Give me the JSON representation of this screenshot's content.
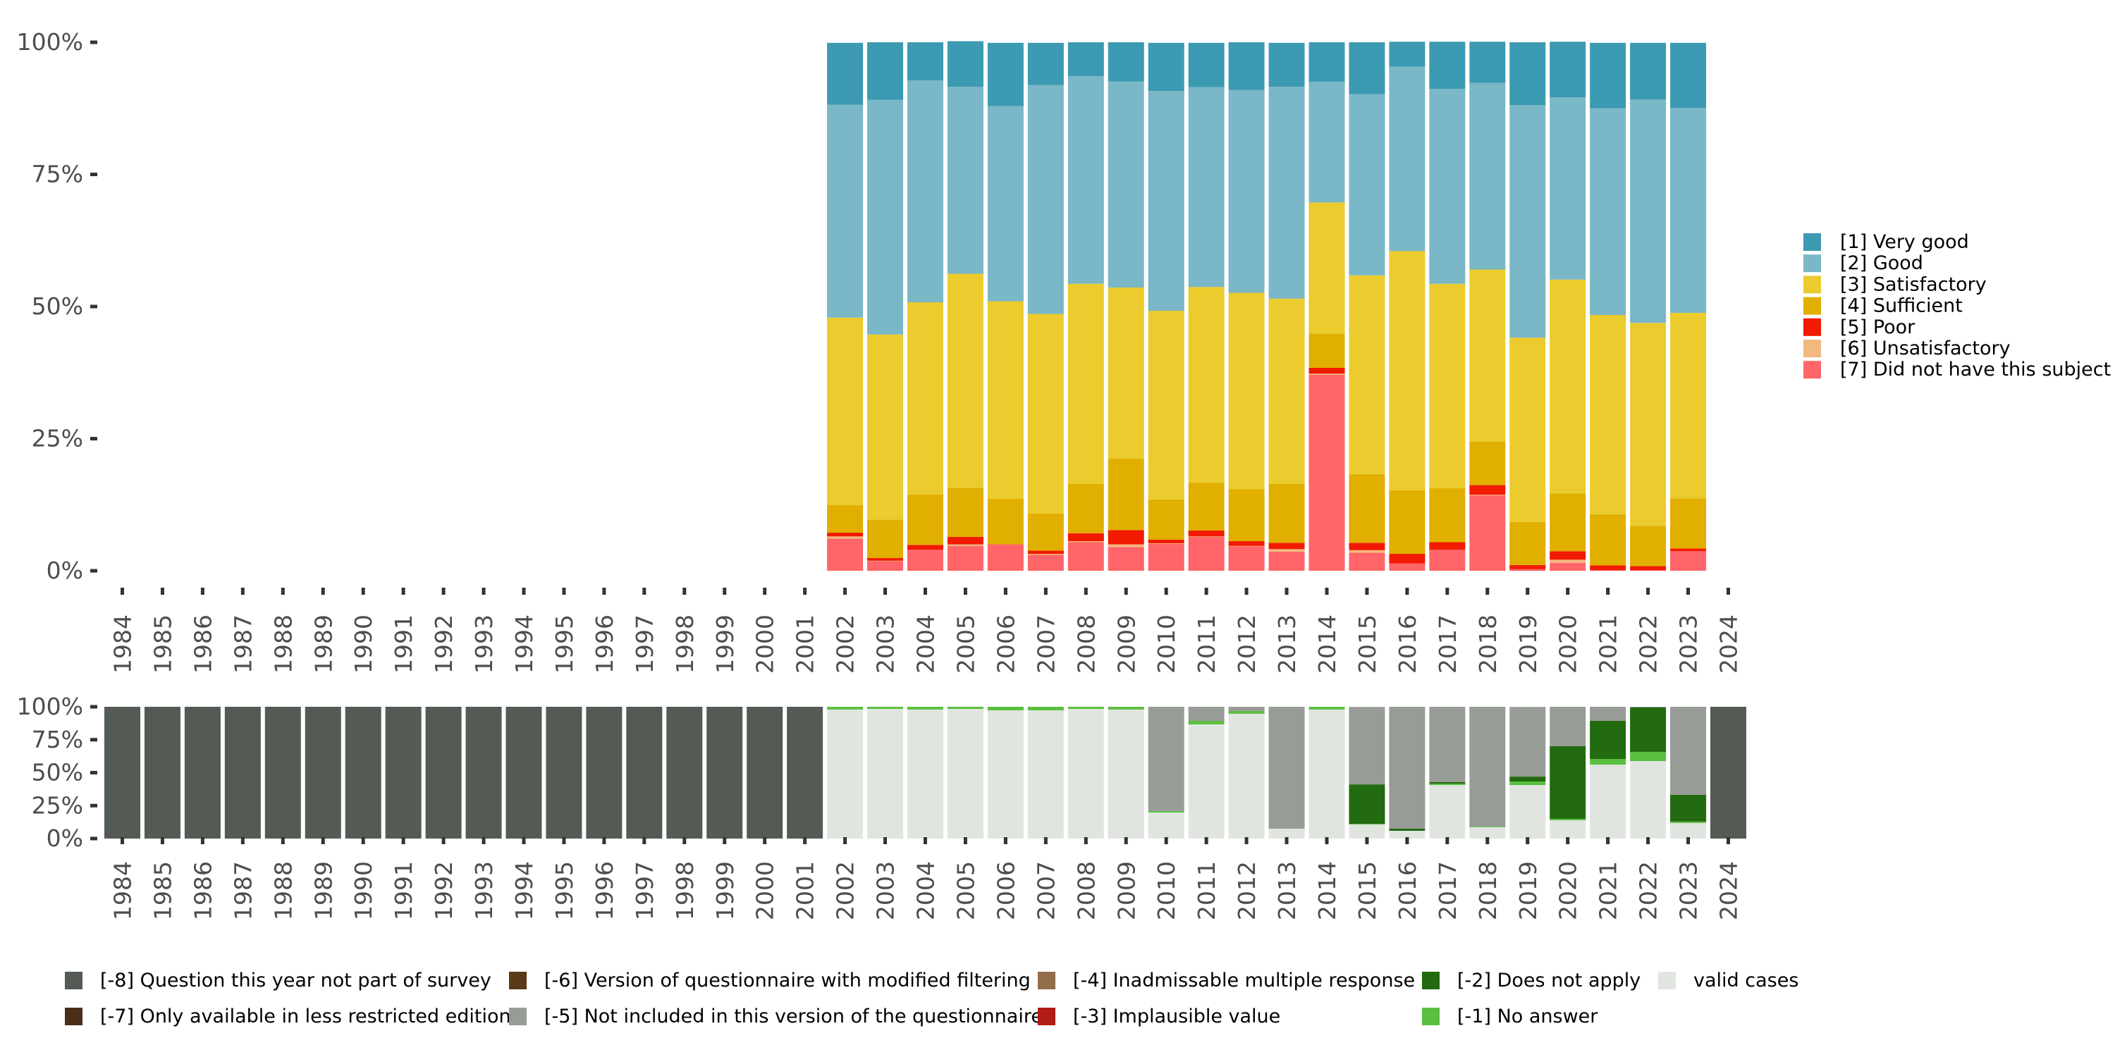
{
  "chart_data": [
    {
      "type": "bar",
      "stacked": true,
      "normalized": true,
      "title": "",
      "xlabel": "",
      "ylabel": "",
      "ylim": [
        0,
        100
      ],
      "yticks": [
        "0%",
        "25%",
        "50%",
        "75%",
        "100%"
      ],
      "categories": [
        "1984",
        "1985",
        "1986",
        "1987",
        "1988",
        "1989",
        "1990",
        "1991",
        "1992",
        "1993",
        "1994",
        "1995",
        "1996",
        "1997",
        "1998",
        "1999",
        "2000",
        "2001",
        "2002",
        "2003",
        "2004",
        "2005",
        "2006",
        "2007",
        "2008",
        "2009",
        "2010",
        "2011",
        "2012",
        "2013",
        "2014",
        "2015",
        "2016",
        "2017",
        "2018",
        "2019",
        "2020",
        "2021",
        "2022",
        "2023",
        "2024"
      ],
      "legend_position": "right",
      "series": [
        {
          "name": "[7] Did not have this subject",
          "color": "#ff6569",
          "values": [
            null,
            null,
            null,
            null,
            null,
            null,
            null,
            null,
            null,
            null,
            null,
            null,
            null,
            null,
            null,
            null,
            null,
            null,
            6.1,
            1.8,
            4.0,
            4.7,
            5.0,
            3.0,
            5.4,
            4.5,
            5.1,
            6.4,
            4.6,
            3.6,
            37.1,
            3.4,
            1.4,
            4.0,
            14.3,
            0.3,
            1.5,
            0.1,
            0.1,
            3.7,
            null
          ]
        },
        {
          "name": "[6] Unsatisfactory",
          "color": "#f2b87f",
          "values": [
            null,
            null,
            null,
            null,
            null,
            null,
            null,
            null,
            null,
            null,
            null,
            null,
            null,
            null,
            null,
            null,
            null,
            null,
            0.4,
            0.1,
            0.0,
            0.3,
            0.0,
            0.2,
            0.2,
            0.5,
            0.1,
            0.1,
            0.1,
            0.5,
            0.2,
            0.5,
            0.0,
            0.0,
            0.1,
            0.0,
            0.6,
            0.0,
            0.0,
            0.0,
            null
          ]
        },
        {
          "name": "[5] Poor",
          "color": "#f21a00",
          "values": [
            null,
            null,
            null,
            null,
            null,
            null,
            null,
            null,
            null,
            null,
            null,
            null,
            null,
            null,
            null,
            null,
            null,
            null,
            0.7,
            0.5,
            0.9,
            1.4,
            0.0,
            0.6,
            1.5,
            2.7,
            0.7,
            1.1,
            0.9,
            1.2,
            1.1,
            1.4,
            1.8,
            1.4,
            1.8,
            0.8,
            1.6,
            0.9,
            0.8,
            0.5,
            null
          ]
        },
        {
          "name": "[4] Sufficient",
          "color": "#e0af00",
          "values": [
            null,
            null,
            null,
            null,
            null,
            null,
            null,
            null,
            null,
            null,
            null,
            null,
            null,
            null,
            null,
            null,
            null,
            null,
            5.2,
            7.3,
            9.5,
            9.3,
            8.6,
            7.0,
            9.4,
            13.5,
            7.6,
            9.1,
            9.8,
            11.1,
            6.5,
            13.0,
            12.0,
            10.2,
            8.2,
            8.1,
            10.9,
            9.7,
            7.6,
            9.5,
            null
          ]
        },
        {
          "name": "[3] Satisfactory",
          "color": "#ebcb2d",
          "values": [
            null,
            null,
            null,
            null,
            null,
            null,
            null,
            null,
            null,
            null,
            null,
            null,
            null,
            null,
            null,
            null,
            null,
            null,
            35.5,
            35.0,
            36.4,
            40.5,
            37.4,
            37.8,
            37.8,
            32.4,
            35.7,
            37.0,
            37.2,
            35.1,
            24.8,
            37.6,
            45.3,
            38.7,
            32.6,
            34.9,
            40.5,
            37.7,
            38.4,
            35.1,
            null
          ]
        },
        {
          "name": "[2] Good",
          "color": "#7ab7c7",
          "values": [
            null,
            null,
            null,
            null,
            null,
            null,
            null,
            null,
            null,
            null,
            null,
            null,
            null,
            null,
            null,
            null,
            null,
            null,
            40.3,
            44.4,
            42.0,
            35.4,
            36.9,
            43.3,
            39.3,
            39.0,
            41.6,
            37.8,
            38.4,
            40.1,
            22.8,
            34.3,
            34.9,
            36.9,
            35.3,
            44.0,
            34.5,
            39.1,
            42.3,
            38.8,
            null
          ]
        },
        {
          "name": "[1] Very good",
          "color": "#3c9ab2",
          "values": [
            null,
            null,
            null,
            null,
            null,
            null,
            null,
            null,
            null,
            null,
            null,
            null,
            null,
            null,
            null,
            null,
            null,
            null,
            11.7,
            10.9,
            7.2,
            8.6,
            12.0,
            8.0,
            6.4,
            7.4,
            9.1,
            8.4,
            9.0,
            8.3,
            7.5,
            9.8,
            4.7,
            8.9,
            7.8,
            11.9,
            10.5,
            12.4,
            10.7,
            12.3,
            null
          ]
        }
      ],
      "legend": [
        {
          "label": "[1] Very good",
          "color": "#3c9ab2"
        },
        {
          "label": "[2] Good",
          "color": "#7ab7c7"
        },
        {
          "label": "[3] Satisfactory",
          "color": "#ebcb2d"
        },
        {
          "label": "[4] Sufficient",
          "color": "#e0af00"
        },
        {
          "label": "[5] Poor",
          "color": "#f21a00"
        },
        {
          "label": "[6] Unsatisfactory",
          "color": "#f2b87f"
        },
        {
          "label": "[7] Did not have this subject",
          "color": "#ff6569"
        }
      ]
    },
    {
      "type": "bar",
      "stacked": true,
      "normalized": true,
      "title": "",
      "xlabel": "",
      "ylabel": "",
      "ylim": [
        0,
        100
      ],
      "yticks": [
        "0%",
        "25%",
        "50%",
        "75%",
        "100%"
      ],
      "categories": [
        "1984",
        "1985",
        "1986",
        "1987",
        "1988",
        "1989",
        "1990",
        "1991",
        "1992",
        "1993",
        "1994",
        "1995",
        "1996",
        "1997",
        "1998",
        "1999",
        "2000",
        "2001",
        "2002",
        "2003",
        "2004",
        "2005",
        "2006",
        "2007",
        "2008",
        "2009",
        "2010",
        "2011",
        "2012",
        "2013",
        "2014",
        "2015",
        "2016",
        "2017",
        "2018",
        "2019",
        "2020",
        "2021",
        "2022",
        "2023",
        "2024"
      ],
      "legend_position": "bottom",
      "series": [
        {
          "name": "valid cases",
          "color": "#e1e5e0",
          "values": [
            0,
            0,
            0,
            0,
            0,
            0,
            0,
            0,
            0,
            0,
            0,
            0,
            0,
            0,
            0,
            0,
            0,
            0,
            97.9,
            98.4,
            97.9,
            98.4,
            97.3,
            97.3,
            98.4,
            97.9,
            19.8,
            86.6,
            94.7,
            7.5,
            97.9,
            10.7,
            5.9,
            40.6,
            8.6,
            40.6,
            13.9,
            56.1,
            58.8,
            11.8,
            0
          ]
        },
        {
          "name": "[-1] No answer",
          "color": "#5bbf3f",
          "values": [
            0,
            0,
            0,
            0,
            0,
            0,
            0,
            0,
            0,
            0,
            0,
            0,
            0,
            0,
            0,
            0,
            0,
            0,
            2.1,
            1.6,
            2.1,
            1.6,
            2.7,
            2.7,
            1.6,
            2.1,
            1.1,
            2.7,
            2.1,
            0,
            2.1,
            0.5,
            0,
            1.1,
            0.5,
            2.7,
            1.1,
            4.3,
            7.0,
            1.1,
            0
          ]
        },
        {
          "name": "[-2] Does not apply",
          "color": "#226b10",
          "values": [
            0,
            0,
            0,
            0,
            0,
            0,
            0,
            0,
            0,
            0,
            0,
            0,
            0,
            0,
            0,
            0,
            0,
            0,
            0,
            0,
            0,
            0,
            0,
            0,
            0,
            0,
            0,
            0,
            0,
            0,
            0,
            29.9,
            1.6,
            1.1,
            0,
            3.7,
            55.1,
            28.9,
            33.7,
            20.3,
            0
          ]
        },
        {
          "name": "[-5] Not included in this version of the questionnaire",
          "color": "#989c96",
          "values": [
            0,
            0,
            0,
            0,
            0,
            0,
            0,
            0,
            0,
            0,
            0,
            0,
            0,
            0,
            0,
            0,
            0,
            0,
            0,
            0,
            0,
            0,
            0,
            0,
            0,
            0,
            79.1,
            10.7,
            3.2,
            92.5,
            0,
            58.8,
            92.5,
            57.2,
            90.9,
            52.9,
            29.9,
            10.7,
            0.5,
            66.8,
            0
          ]
        },
        {
          "name": "[-8] Question this year not part of survey",
          "color": "#545b55",
          "values": [
            100,
            100,
            100,
            100,
            100,
            100,
            100,
            100,
            100,
            100,
            100,
            100,
            100,
            100,
            100,
            100,
            100,
            100,
            0,
            0,
            0,
            0,
            0,
            0,
            0,
            0,
            0,
            0,
            0,
            0,
            0,
            0,
            0,
            0,
            0,
            0,
            0,
            0,
            0,
            0,
            100
          ]
        }
      ],
      "legend": [
        {
          "label": "[-8] Question this year not part of survey",
          "color": "#545b55"
        },
        {
          "label": "[-7] Only available in less restricted edition",
          "color": "#4b2e1a"
        },
        {
          "label": "[-6] Version of questionnaire with modified filtering",
          "color": "#5a3a18"
        },
        {
          "label": "[-5] Not included in this version of the questionnaire",
          "color": "#989c96"
        },
        {
          "label": "[-4] Inadmissable multiple response",
          "color": "#936d4b"
        },
        {
          "label": "[-3] Implausible value",
          "color": "#b01c16"
        },
        {
          "label": "[-2] Does not apply",
          "color": "#226b10"
        },
        {
          "label": "[-1] No answer",
          "color": "#5bbf3f"
        },
        {
          "label": "valid cases",
          "color": "#e1e5e0"
        }
      ]
    }
  ]
}
